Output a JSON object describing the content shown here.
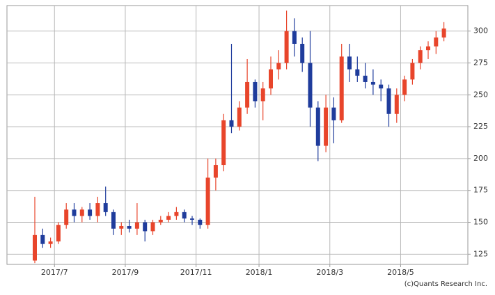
{
  "chart_data": {
    "type": "candlestick",
    "categories": [
      null,
      null,
      null,
      "2017/7",
      null,
      null,
      null,
      null,
      null,
      null,
      null,
      null,
      "2017/9",
      null,
      null,
      null,
      null,
      null,
      null,
      null,
      null,
      "2017/11",
      null,
      null,
      null,
      null,
      null,
      null,
      null,
      "2018/1",
      null,
      null,
      null,
      null,
      null,
      null,
      null,
      null,
      "2018/3",
      null,
      null,
      null,
      null,
      null,
      null,
      null,
      null,
      "2018/5",
      null,
      null,
      null,
      null,
      null
    ],
    "open": [
      120,
      140,
      133,
      135,
      148,
      160,
      155,
      160,
      155,
      165,
      158,
      145,
      147,
      145,
      150,
      143,
      150,
      152,
      155,
      158,
      153,
      152,
      148,
      185,
      195,
      230,
      225,
      240,
      260,
      245,
      255,
      270,
      275,
      300,
      290,
      275,
      240,
      210,
      240,
      230,
      280,
      270,
      265,
      260,
      258,
      255,
      235,
      250,
      262,
      275,
      285,
      288,
      295
    ],
    "high": [
      170,
      145,
      138,
      150,
      165,
      165,
      162,
      165,
      170,
      178,
      160,
      150,
      152,
      165,
      152,
      152,
      155,
      158,
      162,
      160,
      155,
      153,
      200,
      200,
      235,
      290,
      245,
      278,
      262,
      260,
      280,
      285,
      316,
      310,
      295,
      300,
      245,
      250,
      248,
      290,
      290,
      280,
      275,
      270,
      262,
      258,
      255,
      265,
      278,
      288,
      292,
      300,
      307
    ],
    "low": [
      118,
      130,
      130,
      133,
      145,
      150,
      150,
      152,
      150,
      155,
      140,
      140,
      142,
      140,
      135,
      140,
      148,
      150,
      152,
      150,
      148,
      145,
      145,
      175,
      190,
      220,
      222,
      235,
      240,
      230,
      250,
      262,
      270,
      280,
      268,
      225,
      198,
      205,
      212,
      228,
      260,
      260,
      255,
      250,
      245,
      225,
      228,
      245,
      258,
      270,
      278,
      282,
      292
    ],
    "close": [
      140,
      133,
      135,
      148,
      160,
      155,
      160,
      155,
      165,
      158,
      145,
      147,
      145,
      150,
      143,
      150,
      152,
      155,
      158,
      153,
      152,
      148,
      185,
      195,
      230,
      225,
      240,
      260,
      245,
      255,
      270,
      275,
      300,
      290,
      275,
      240,
      210,
      240,
      230,
      280,
      270,
      265,
      260,
      258,
      255,
      235,
      250,
      262,
      275,
      285,
      288,
      295,
      302
    ],
    "up_color": "#e8452b",
    "down_color": "#1f3c9c",
    "ylim": [
      117,
      320
    ],
    "yticks": [
      125,
      150,
      175,
      200,
      225,
      250,
      275,
      300
    ],
    "grid": true,
    "credit": "(c)Quants Research Inc."
  }
}
